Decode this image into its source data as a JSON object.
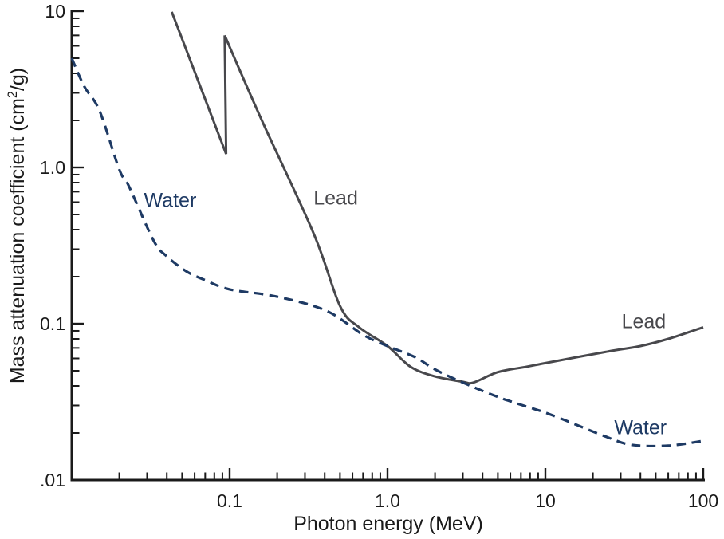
{
  "figure": {
    "background": "#ffffff",
    "axis_color": "#1a1a1a"
  },
  "chart_data": {
    "type": "line",
    "title": "",
    "xlabel": "Photon energy (MeV)",
    "ylabel": {
      "pre": "Mass attenuation coefficient (cm",
      "sup": "2",
      "post": "/g)"
    },
    "x_scale": "log",
    "y_scale": "log",
    "xlim": [
      0.01,
      100
    ],
    "ylim": [
      0.01,
      10
    ],
    "grid": false,
    "legend_position": "inline-curve-labels",
    "x_tick_labels": [
      {
        "value": 0.1,
        "label": "0.1"
      },
      {
        "value": 1,
        "label": "1.0"
      },
      {
        "value": 10,
        "label": "10"
      },
      {
        "value": 100,
        "label": "100"
      }
    ],
    "y_tick_labels": [
      {
        "value": 10,
        "label": "10"
      },
      {
        "value": 1,
        "label": "1.0"
      },
      {
        "value": 0.1,
        "label": "0.1"
      },
      {
        "value": 0.01,
        "label": ".01"
      }
    ],
    "series": [
      {
        "name": "Lead",
        "color": "#48484c",
        "line_style": "solid",
        "line_width": 3,
        "segments": [
          {
            "smooth": false,
            "points": [
              [
                0.043,
                9.9
              ],
              [
                0.095,
                1.22
              ],
              [
                0.093,
                7.0
              ]
            ]
          },
          {
            "smooth": true,
            "points": [
              [
                0.093,
                7.0
              ],
              [
                0.16,
                2.0
              ],
              [
                0.34,
                0.38
              ],
              [
                0.5,
                0.13
              ],
              [
                0.66,
                0.095
              ],
              [
                1.0,
                0.072
              ],
              [
                1.4,
                0.053
              ],
              [
                2.0,
                0.046
              ],
              [
                3.0,
                0.0425
              ],
              [
                3.5,
                0.042
              ],
              [
                5.0,
                0.049
              ],
              [
                7.6,
                0.053
              ],
              [
                10,
                0.056
              ],
              [
                24,
                0.066
              ],
              [
                40,
                0.072
              ],
              [
                60,
                0.08
              ],
              [
                100,
                0.095
              ]
            ]
          }
        ]
      },
      {
        "name": "Water",
        "color": "#1e3a64",
        "line_style": "dashed",
        "dash": [
          11.5,
          7.5
        ],
        "line_width": 3.2,
        "segments": [
          {
            "smooth": true,
            "points": [
              [
                0.01,
                5.0
              ],
              [
                0.012,
                3.3
              ],
              [
                0.015,
                2.3
              ],
              [
                0.02,
                0.97
              ],
              [
                0.023,
                0.76
              ],
              [
                0.033,
                0.34
              ],
              [
                0.04,
                0.27
              ],
              [
                0.053,
                0.217
              ],
              [
                0.07,
                0.19
              ],
              [
                0.1,
                0.166
              ],
              [
                0.2,
                0.149
              ],
              [
                0.41,
                0.121
              ],
              [
                0.7,
                0.085
              ],
              [
                1.0,
                0.072
              ],
              [
                1.5,
                0.061
              ],
              [
                2.0,
                0.051
              ],
              [
                3.0,
                0.042
              ],
              [
                5.0,
                0.034
              ],
              [
                7.6,
                0.0295
              ],
              [
                10,
                0.027
              ],
              [
                15,
                0.023
              ],
              [
                24,
                0.019
              ],
              [
                35,
                0.0168
              ],
              [
                60,
                0.0166
              ],
              [
                100,
                0.0178
              ]
            ]
          }
        ]
      }
    ],
    "annotations": [
      {
        "text": "Water",
        "series": "Water",
        "energy_mev": 0.042,
        "value": 0.61
      },
      {
        "text": "Lead",
        "series": "Lead",
        "energy_mev": 0.47,
        "value": 0.63
      },
      {
        "text": "Lead",
        "series": "Lead",
        "energy_mev": 42,
        "value": 0.102
      },
      {
        "text": "Water",
        "series": "Water",
        "energy_mev": 40,
        "value": 0.0215
      }
    ]
  }
}
